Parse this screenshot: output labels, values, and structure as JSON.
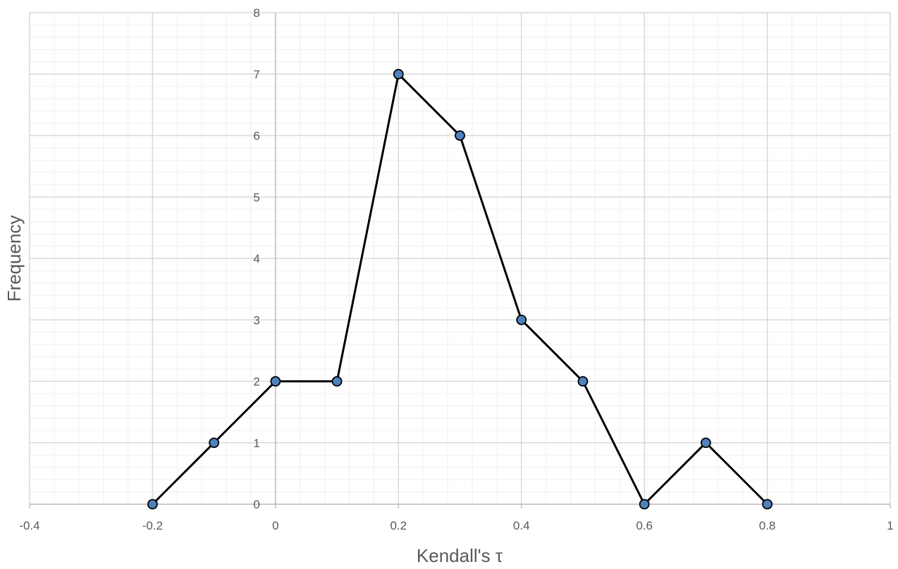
{
  "chart_data": {
    "type": "line",
    "title": "",
    "xlabel": "Kendall's τ",
    "ylabel": "Frequency",
    "xlim": [
      -0.4,
      1
    ],
    "ylim": [
      0,
      8
    ],
    "x_ticks": [
      "-0.4",
      "-0.2",
      "0",
      "0.2",
      "0.4",
      "0.6",
      "0.8",
      "1"
    ],
    "y_ticks": [
      "0",
      "1",
      "2",
      "3",
      "4",
      "5",
      "6",
      "7",
      "8"
    ],
    "grid": true,
    "legend": "none",
    "series": [
      {
        "x": [
          -0.2,
          -0.1,
          0,
          0.1,
          0.2,
          0.3,
          0.4,
          0.5,
          0.6,
          0.7,
          0.8
        ],
        "y": [
          0,
          1,
          2,
          2,
          7,
          6,
          3,
          2,
          0,
          1,
          0
        ],
        "line_color": "#000000",
        "marker_fill": "#4f81bd",
        "marker_stroke": "#000000"
      }
    ],
    "colors": {
      "major_grid": "#d9d9d9",
      "minor_grid": "#efefef",
      "axis": "#bfbfbf",
      "text": "#595959"
    }
  }
}
